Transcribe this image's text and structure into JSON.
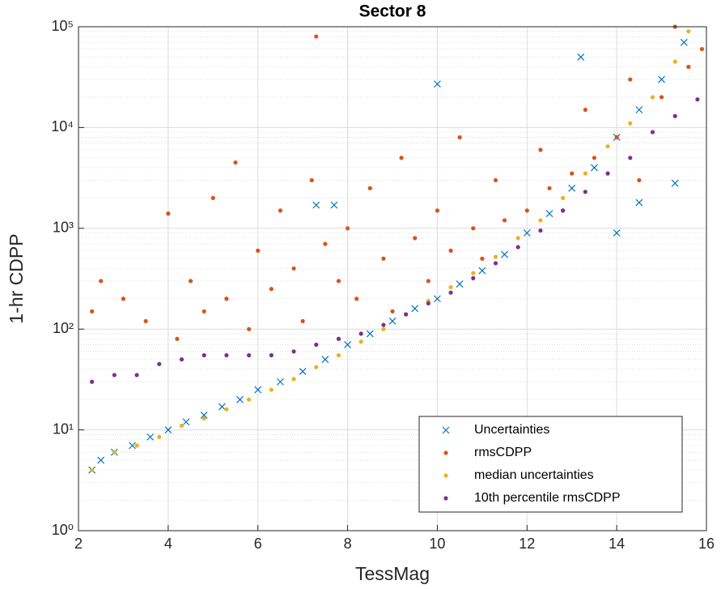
{
  "chart_data": {
    "type": "scatter",
    "title": "Sector 8",
    "xlabel": "TessMag",
    "ylabel": "1-hr CDPP",
    "xlim": [
      2,
      16
    ],
    "xticks": [
      2,
      4,
      6,
      8,
      10,
      12,
      14,
      16
    ],
    "ylim": [
      1,
      100000
    ],
    "ylog": true,
    "yticks": [
      {
        "value": 1,
        "label": "10⁰"
      },
      {
        "value": 10,
        "label": "10¹"
      },
      {
        "value": 100,
        "label": "10²"
      },
      {
        "value": 1000,
        "label": "10³"
      },
      {
        "value": 10000,
        "label": "10⁴"
      },
      {
        "value": 100000,
        "label": "10⁵"
      }
    ],
    "yminorticks": [
      2,
      3,
      4,
      5,
      6,
      7,
      8,
      9,
      20,
      30,
      40,
      50,
      60,
      70,
      80,
      90,
      200,
      300,
      400,
      500,
      600,
      700,
      800,
      900,
      2000,
      3000,
      4000,
      5000,
      6000,
      7000,
      8000,
      9000,
      20000,
      30000,
      40000,
      50000,
      60000,
      70000,
      80000,
      90000
    ],
    "grid": true,
    "legend": "southeast",
    "series": [
      {
        "name": "Uncertainties",
        "color": "#0072BD",
        "marker": "x",
        "x": [
          2.3,
          2.5,
          2.8,
          3.2,
          3.6,
          4.0,
          4.4,
          4.8,
          5.2,
          5.6,
          6.0,
          6.5,
          7.0,
          7.5,
          8.0,
          8.5,
          9.0,
          9.5,
          10.0,
          10.5,
          11.0,
          11.5,
          12.0,
          12.5,
          13.0,
          13.5,
          14.0,
          14.5,
          15.0,
          15.5,
          7.3,
          7.7,
          10.0,
          13.2,
          15.3,
          14.5,
          14.0
        ],
        "values": [
          4,
          5,
          6,
          7,
          8.5,
          10,
          12,
          14,
          17,
          20,
          25,
          30,
          38,
          50,
          70,
          90,
          120,
          160,
          200,
          280,
          380,
          550,
          900,
          1400,
          2500,
          4000,
          8000,
          15000,
          30000,
          70000,
          1700,
          1700,
          27000,
          50000,
          2800,
          1800,
          900
        ]
      },
      {
        "name": "rmsCDPP",
        "color": "#D95319",
        "marker": "dot",
        "x": [
          2.3,
          2.5,
          3.0,
          3.5,
          4.0,
          4.2,
          4.5,
          4.8,
          5.0,
          5.3,
          5.5,
          5.8,
          6.0,
          6.3,
          6.5,
          6.8,
          7.0,
          7.2,
          7.3,
          7.5,
          7.8,
          8.0,
          8.2,
          8.5,
          8.8,
          9.0,
          9.2,
          9.5,
          9.8,
          10.0,
          10.3,
          10.5,
          10.8,
          11.0,
          11.3,
          11.5,
          12.0,
          12.3,
          12.5,
          12.8,
          13.0,
          13.3,
          13.5,
          14.0,
          14.3,
          14.5,
          15.0,
          15.3,
          15.6,
          15.9
        ],
        "values": [
          150,
          300,
          200,
          120,
          1400,
          80,
          300,
          150,
          2000,
          200,
          4500,
          100,
          600,
          250,
          1500,
          400,
          120,
          3000,
          80000,
          700,
          300,
          1000,
          200,
          2500,
          500,
          150,
          5000,
          800,
          300,
          1500,
          600,
          8000,
          1000,
          500,
          3000,
          1200,
          1500,
          6000,
          2500,
          1500,
          3500,
          15000,
          5000,
          8000,
          30000,
          3000,
          20000,
          100000,
          40000,
          60000
        ]
      },
      {
        "name": "median uncertainties",
        "color": "#EDB120",
        "marker": "dot",
        "x": [
          2.3,
          2.8,
          3.3,
          3.8,
          4.3,
          4.8,
          5.3,
          5.8,
          6.3,
          6.8,
          7.3,
          7.8,
          8.3,
          8.8,
          9.3,
          9.8,
          10.3,
          10.8,
          11.3,
          11.8,
          12.3,
          12.8,
          13.3,
          13.8,
          14.3,
          14.8,
          15.3,
          15.6
        ],
        "values": [
          4,
          6,
          7,
          8.5,
          11,
          13,
          16,
          20,
          25,
          32,
          42,
          55,
          75,
          100,
          140,
          190,
          260,
          360,
          520,
          800,
          1200,
          2000,
          3500,
          6500,
          11000,
          20000,
          45000,
          90000
        ]
      },
      {
        "name": "10th percentile rmsCDPP",
        "color": "#7E2F8E",
        "marker": "dot",
        "x": [
          2.3,
          2.8,
          3.3,
          3.8,
          4.3,
          4.8,
          5.3,
          5.8,
          6.3,
          6.8,
          7.3,
          7.8,
          8.3,
          8.8,
          9.3,
          9.8,
          10.3,
          10.8,
          11.3,
          11.8,
          12.3,
          12.8,
          13.3,
          13.8,
          14.3,
          14.8,
          15.3,
          15.8
        ],
        "values": [
          30,
          35,
          35,
          45,
          50,
          55,
          55,
          55,
          55,
          60,
          70,
          80,
          90,
          110,
          140,
          180,
          230,
          320,
          450,
          650,
          950,
          1500,
          2300,
          3500,
          5000,
          9000,
          13000,
          19000
        ]
      }
    ]
  }
}
